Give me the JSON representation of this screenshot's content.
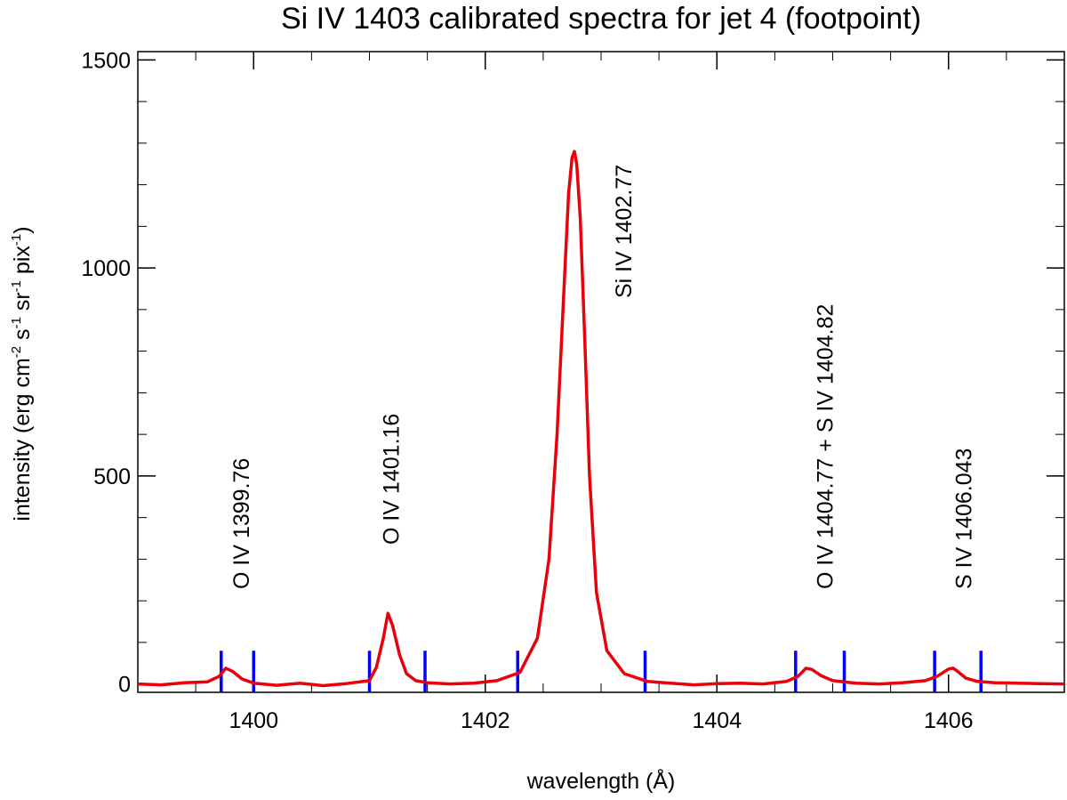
{
  "chart_data": {
    "type": "line",
    "title": "Si IV 1403 calibrated spectra for jet 4 (footpoint)",
    "xlabel": "wavelength (Å)",
    "ylabel": {
      "prefix": "intensity (erg cm",
      "exp1": "-2",
      "mid1": " s",
      "exp2": "-1",
      "mid2": " sr",
      "exp3": "-1",
      "mid3": " pix",
      "exp4": "-1",
      "suffix": ")"
    },
    "xlim": [
      1399.0,
      1407.0
    ],
    "ylim": [
      -20,
      1520
    ],
    "x_ticks": [
      {
        "value": 1400,
        "label": "1400"
      },
      {
        "value": 1402,
        "label": "1402"
      },
      {
        "value": 1404,
        "label": "1404"
      },
      {
        "value": 1406,
        "label": "1406"
      }
    ],
    "y_ticks": [
      {
        "value": 0,
        "label": "0"
      },
      {
        "value": 500,
        "label": "500"
      },
      {
        "value": 1000,
        "label": "1000"
      },
      {
        "value": 1500,
        "label": "1500"
      }
    ],
    "x_minor_step": 0.5,
    "y_minor_step": 100,
    "series": [
      {
        "name": "spectrum",
        "color": "#e8000b",
        "x": [
          1399.0,
          1399.2,
          1399.4,
          1399.6,
          1399.7,
          1399.76,
          1399.82,
          1399.9,
          1400.0,
          1400.2,
          1400.4,
          1400.6,
          1400.8,
          1401.0,
          1401.06,
          1401.12,
          1401.16,
          1401.2,
          1401.26,
          1401.32,
          1401.4,
          1401.5,
          1401.7,
          1401.9,
          1402.1,
          1402.3,
          1402.45,
          1402.55,
          1402.62,
          1402.68,
          1402.72,
          1402.75,
          1402.77,
          1402.79,
          1402.82,
          1402.86,
          1402.9,
          1402.96,
          1403.05,
          1403.2,
          1403.4,
          1403.6,
          1403.8,
          1404.0,
          1404.2,
          1404.4,
          1404.6,
          1404.7,
          1404.77,
          1404.82,
          1404.9,
          1405.0,
          1405.2,
          1405.4,
          1405.6,
          1405.8,
          1405.9,
          1406.0,
          1406.04,
          1406.08,
          1406.15,
          1406.25,
          1406.4,
          1406.6,
          1406.8,
          1407.0
        ],
        "y": [
          0,
          -2,
          3,
          5,
          18,
          38,
          30,
          12,
          2,
          -3,
          2,
          -4,
          1,
          8,
          40,
          110,
          170,
          140,
          70,
          25,
          8,
          3,
          0,
          2,
          8,
          28,
          110,
          300,
          600,
          950,
          1180,
          1265,
          1280,
          1250,
          1120,
          820,
          500,
          220,
          80,
          25,
          6,
          2,
          -2,
          1,
          2,
          0,
          6,
          18,
          38,
          35,
          20,
          8,
          2,
          0,
          3,
          8,
          18,
          36,
          38,
          30,
          14,
          6,
          3,
          2,
          1,
          0
        ]
      }
    ],
    "markers": {
      "color": "#0000ff",
      "positions": [
        1399.72,
        1400.0,
        1401.0,
        1401.48,
        1402.28,
        1403.38,
        1404.68,
        1405.1,
        1405.88,
        1406.28
      ],
      "height_value": 80
    },
    "annotations": [
      {
        "text": "O IV 1399.76",
        "x": 1399.76
      },
      {
        "text": "O IV 1401.16",
        "x": 1401.16
      },
      {
        "text": "Si IV 1402.77",
        "x": 1402.77
      },
      {
        "text": "O IV 1404.77 + S IV 1404.82",
        "x": 1404.77
      },
      {
        "text": "S IV 1406.043",
        "x": 1406.043
      }
    ]
  }
}
